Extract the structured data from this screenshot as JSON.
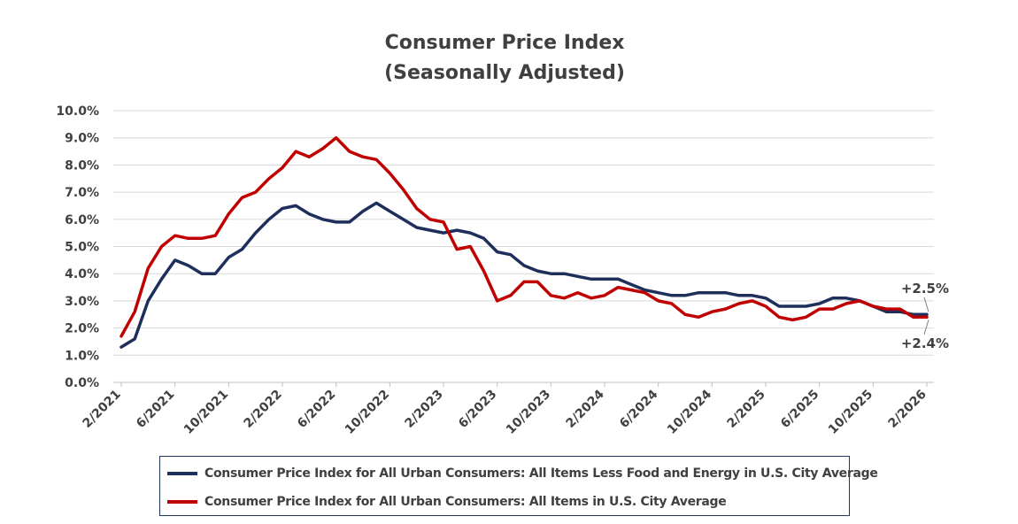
{
  "chart_data": {
    "type": "line",
    "title": "Consumer Price Index",
    "subtitle": "(Seasonally Adjusted)",
    "ylim": [
      0,
      10
    ],
    "yticks": [
      "0.0%",
      "1.0%",
      "2.0%",
      "3.0%",
      "4.0%",
      "5.0%",
      "6.0%",
      "7.0%",
      "8.0%",
      "9.0%",
      "10.0%"
    ],
    "xticks": [
      "2/2021",
      "6/2021",
      "10/2021",
      "2/2022",
      "6/2022",
      "10/2022",
      "2/2023",
      "6/2023",
      "10/2023",
      "2/2024",
      "6/2024",
      "10/2024",
      "2/2025",
      "6/2025",
      "10/2025",
      "2/2026"
    ],
    "x_start": "2/2021",
    "x_end": "2/2026",
    "series": [
      {
        "name": "Consumer Price Index for All Urban Consumers: All Items Less Food and Energy in U.S. City Average",
        "color": "#1f2f5c",
        "values": [
          1.3,
          1.6,
          3.0,
          3.8,
          4.5,
          4.3,
          4.0,
          4.0,
          4.6,
          4.9,
          5.5,
          6.0,
          6.4,
          6.5,
          6.2,
          6.0,
          5.9,
          5.9,
          6.3,
          6.6,
          6.3,
          6.0,
          5.7,
          5.6,
          5.5,
          5.6,
          5.5,
          5.3,
          4.8,
          4.7,
          4.3,
          4.1,
          4.0,
          4.0,
          3.9,
          3.8,
          3.8,
          3.8,
          3.6,
          3.4,
          3.3,
          3.2,
          3.2,
          3.3,
          3.3,
          3.3,
          3.2,
          3.2,
          3.1,
          2.8,
          2.8,
          2.8,
          2.9,
          3.1,
          3.1,
          3.0,
          2.8,
          2.6,
          2.6,
          2.5,
          2.5
        ]
      },
      {
        "name": "Consumer Price Index for All Urban Consumers: All Items in U.S. City Average",
        "color": "#c00000",
        "values": [
          1.7,
          2.6,
          4.2,
          5.0,
          5.4,
          5.3,
          5.3,
          5.4,
          6.2,
          6.8,
          7.0,
          7.5,
          7.9,
          8.5,
          8.3,
          8.6,
          9.0,
          8.5,
          8.3,
          8.2,
          7.7,
          7.1,
          6.4,
          6.0,
          5.9,
          4.9,
          5.0,
          4.1,
          3.0,
          3.2,
          3.7,
          3.7,
          3.2,
          3.1,
          3.3,
          3.1,
          3.2,
          3.5,
          3.4,
          3.3,
          3.0,
          2.9,
          2.5,
          2.4,
          2.6,
          2.7,
          2.9,
          3.0,
          2.8,
          2.4,
          2.3,
          2.4,
          2.7,
          2.7,
          2.9,
          3.0,
          2.8,
          2.7,
          2.7,
          2.4,
          2.4
        ]
      }
    ],
    "annotations": [
      "+2.5%",
      "+2.4%"
    ]
  }
}
